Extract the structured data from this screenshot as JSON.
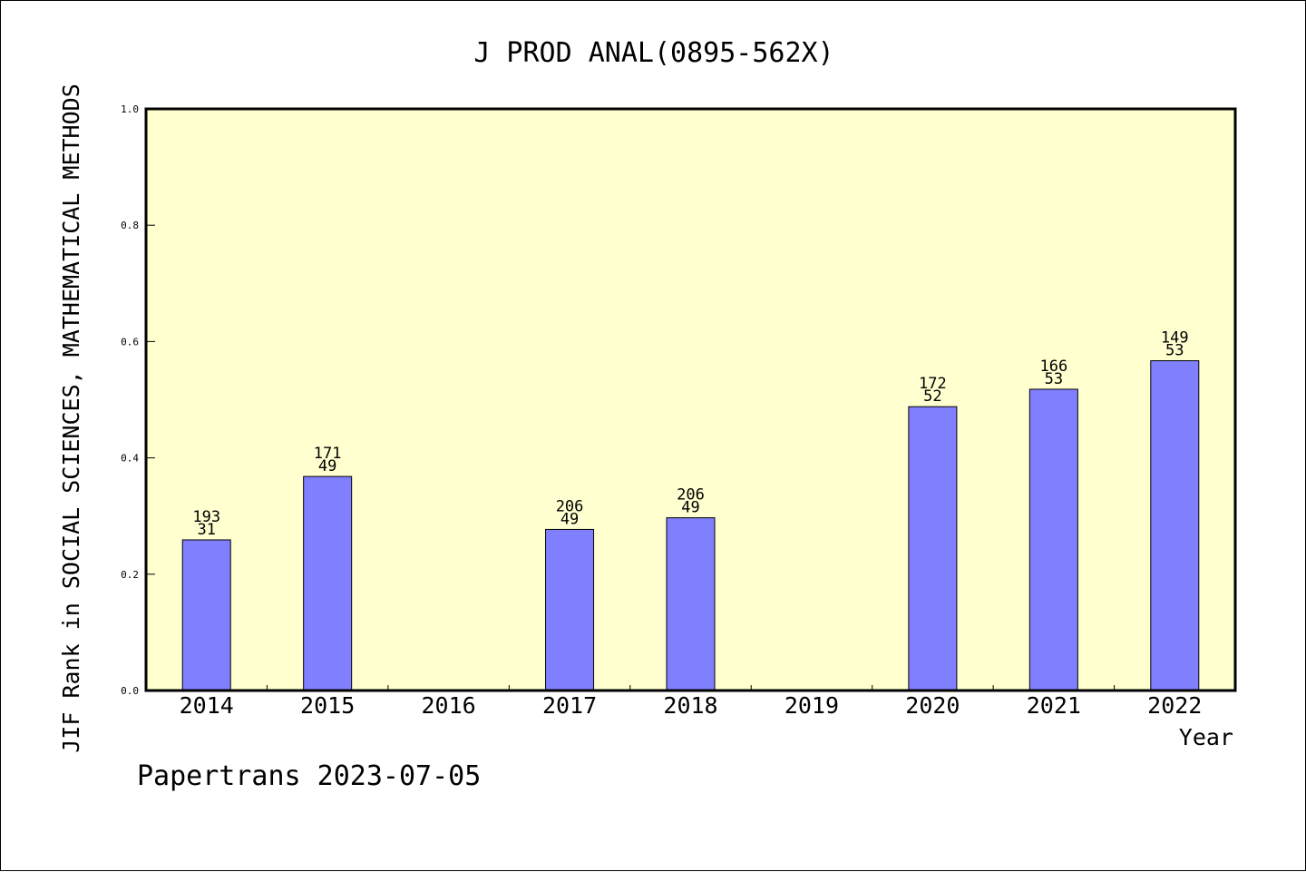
{
  "chart_data": {
    "type": "bar",
    "title": "J PROD ANAL(0895-562X)",
    "xlabel": "Year",
    "ylabel": "JIF Rank in SOCIAL SCIENCES, MATHEMATICAL METHODS",
    "categories": [
      "2014",
      "2015",
      "2016",
      "2017",
      "2018",
      "2019",
      "2020",
      "2021",
      "2022"
    ],
    "values": [
      0.259,
      0.368,
      null,
      0.277,
      0.297,
      null,
      0.488,
      0.518,
      0.567
    ],
    "bar_labels": [
      [
        "193",
        "31"
      ],
      [
        "171",
        "49"
      ],
      null,
      [
        "206",
        "49"
      ],
      [
        "206",
        "49"
      ],
      null,
      [
        "172",
        "52"
      ],
      [
        "166",
        "53"
      ],
      [
        "149",
        "53"
      ]
    ],
    "ylim": [
      0,
      1.0
    ],
    "yticks": [
      "0.0",
      "0.2",
      "0.4",
      "0.6",
      "0.8",
      "1.0"
    ],
    "grid": false,
    "colors": {
      "plot_background": "#ffffd0",
      "bar_fill": "#8080ff",
      "bar_stroke": "#000000",
      "axis": "#000000"
    }
  },
  "footer": "Papertrans 2023-07-05"
}
